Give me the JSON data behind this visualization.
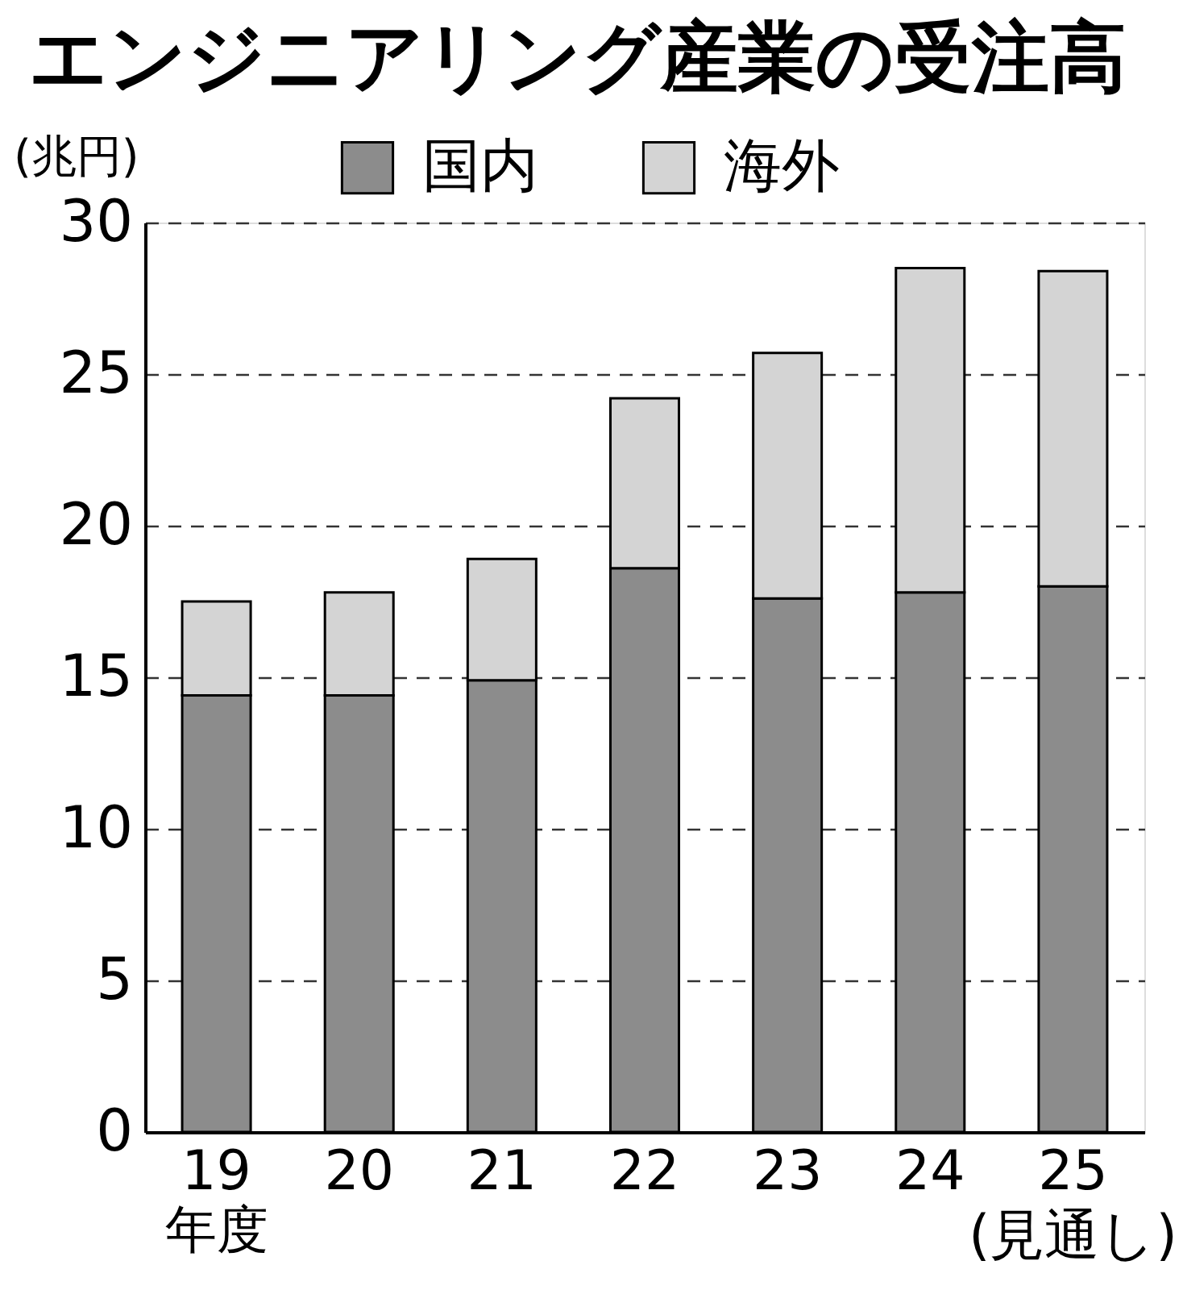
{
  "chart_data": {
    "type": "bar",
    "title": "エンジニアリング産業の受注高",
    "ylabel": "(兆円)",
    "xlabel": "年度",
    "categories": [
      "19",
      "20",
      "21",
      "22",
      "23",
      "24",
      "25\n(見通し)"
    ],
    "stacked": true,
    "series": [
      {
        "name": "国内",
        "color": "#8c8c8c",
        "values": [
          14.4,
          14.4,
          14.9,
          18.6,
          17.6,
          17.8,
          18.0
        ]
      },
      {
        "name": "海外",
        "color": "#d4d4d4",
        "values": [
          3.1,
          3.4,
          4.0,
          5.6,
          8.1,
          10.7,
          10.4
        ]
      }
    ],
    "ylim": [
      0,
      30
    ],
    "yticks": [
      0,
      5,
      10,
      15,
      20,
      25,
      30
    ],
    "grid": "y",
    "legend": "top"
  }
}
